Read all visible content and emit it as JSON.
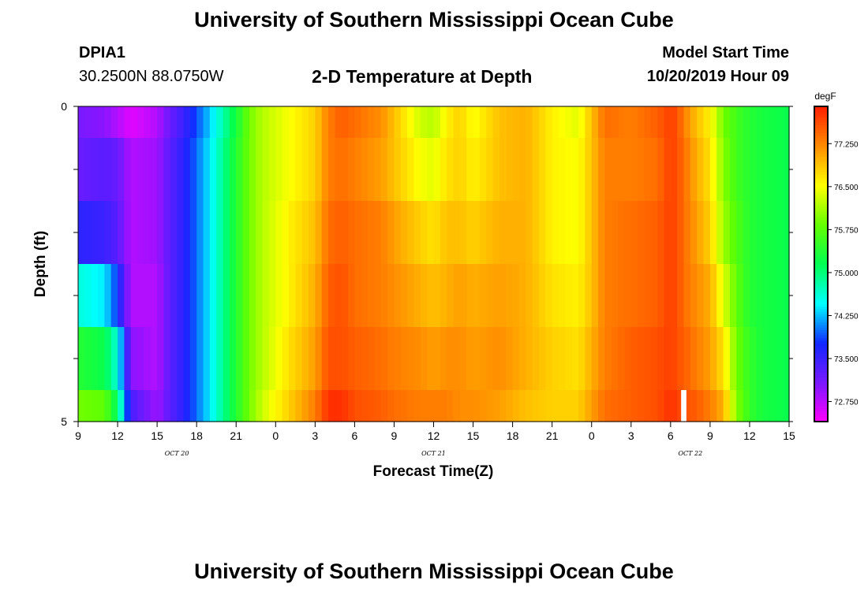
{
  "page": {
    "title_top": "University of Southern Mississippi Ocean Cube",
    "title_bottom": "University of Southern Mississippi Ocean Cube",
    "station_id": "DPIA1",
    "station_coords": "30.2500N 88.0750W",
    "plot_title": "2-D Temperature at Depth",
    "model_label": "Model Start Time",
    "model_time": "10/20/2019 Hour 09"
  },
  "colors": {
    "scale": [
      "#ff00ff",
      "#7a18ff",
      "#1028ff",
      "#00ffff",
      "#00ff52",
      "#64ff00",
      "#ffff00",
      "#ff8c00",
      "#ff1f00"
    ],
    "missing": "#ffffff"
  },
  "chart_data": {
    "type": "heatmap",
    "title": "2-D Temperature at Depth",
    "xlabel": "Forecast Time(Z)",
    "ylabel": "Depth (ft)",
    "x_ticks": [
      "9",
      "12",
      "15",
      "18",
      "21",
      "0",
      "3",
      "6",
      "9",
      "12",
      "15",
      "18",
      "21",
      "0",
      "3",
      "6",
      "9",
      "12",
      "15"
    ],
    "date_labels": [
      {
        "label": "OCT 20",
        "x": 16.5
      },
      {
        "label": "OCT 21",
        "x": 36
      },
      {
        "label": "OCT 22",
        "x": 55.5
      }
    ],
    "xlim": [
      9,
      63
    ],
    "y_ticks": [
      "0",
      "5"
    ],
    "ylim": [
      0,
      5
    ],
    "colorbar": {
      "units": "degF",
      "tick_labels": [
        "72.750",
        "73.500",
        "74.250",
        "75.000",
        "75.750",
        "76.500",
        "77.250"
      ],
      "range": [
        72.4,
        77.9
      ]
    },
    "depth_bands": [
      0.5,
      1.5,
      2.5,
      3.5,
      4.5,
      5.0
    ],
    "time_knots": [
      9,
      11,
      12,
      13,
      15,
      16,
      17,
      19,
      21,
      22,
      23,
      25,
      27,
      28,
      29,
      30,
      32,
      33,
      35,
      36,
      37,
      38,
      39,
      41,
      43,
      45,
      47,
      48,
      49,
      51,
      53,
      54,
      54.5,
      55,
      56,
      57,
      58,
      59,
      60,
      61,
      63
    ],
    "rows": [
      [
        73.1,
        73.0,
        72.8,
        72.55,
        72.8,
        73.2,
        73.5,
        74.3,
        75.3,
        75.9,
        76.2,
        76.5,
        76.8,
        77.3,
        77.5,
        77.4,
        77.2,
        76.9,
        76.3,
        76.2,
        76.6,
        76.8,
        76.5,
        76.9,
        77.0,
        76.6,
        76.4,
        76.9,
        77.4,
        77.3,
        77.5,
        77.7,
        77.6,
        77.3,
        76.9,
        76.6,
        75.9,
        75.6,
        75.4,
        75.3,
        75.2
      ],
      [
        73.2,
        73.3,
        73.2,
        72.8,
        72.9,
        73.3,
        73.6,
        74.4,
        75.4,
        75.9,
        76.2,
        76.5,
        76.8,
        77.3,
        77.4,
        77.3,
        77.1,
        76.9,
        76.5,
        76.4,
        76.7,
        76.8,
        76.6,
        76.9,
        77.0,
        76.6,
        76.5,
        76.9,
        77.3,
        77.3,
        77.4,
        77.7,
        77.6,
        77.4,
        77.0,
        76.7,
        76.0,
        75.6,
        75.4,
        75.3,
        75.2
      ],
      [
        73.6,
        73.5,
        73.3,
        72.8,
        72.9,
        73.3,
        73.6,
        74.4,
        75.4,
        75.9,
        76.2,
        76.6,
        76.9,
        77.4,
        77.5,
        77.4,
        77.3,
        77.1,
        76.8,
        76.7,
        76.9,
        76.9,
        76.8,
        77.0,
        77.0,
        76.6,
        76.5,
        76.9,
        77.3,
        77.4,
        77.5,
        77.7,
        77.6,
        77.4,
        77.1,
        76.8,
        76.1,
        75.7,
        75.4,
        75.3,
        75.2
      ],
      [
        74.6,
        74.4,
        73.8,
        72.8,
        72.8,
        73.3,
        73.6,
        74.4,
        75.4,
        75.9,
        76.2,
        76.6,
        77.0,
        77.5,
        77.6,
        77.4,
        77.3,
        77.2,
        77.0,
        76.9,
        77.0,
        77.1,
        77.0,
        77.1,
        77.0,
        76.7,
        76.6,
        76.9,
        77.3,
        77.4,
        77.5,
        77.7,
        77.6,
        77.4,
        77.2,
        77.0,
        76.4,
        75.8,
        75.4,
        75.3,
        75.2
      ],
      [
        75.4,
        75.2,
        74.6,
        73.0,
        72.8,
        73.3,
        73.6,
        74.4,
        75.4,
        75.9,
        76.2,
        76.7,
        77.1,
        77.6,
        77.6,
        77.5,
        77.4,
        77.3,
        77.2,
        77.1,
        77.2,
        77.2,
        77.1,
        77.2,
        77.0,
        76.8,
        76.7,
        77.0,
        77.3,
        77.5,
        77.6,
        77.7,
        77.6,
        77.5,
        77.3,
        77.1,
        76.7,
        75.9,
        75.5,
        75.3,
        75.2
      ],
      [
        75.9,
        75.8,
        75.1,
        73.4,
        72.9,
        73.3,
        73.6,
        74.4,
        75.4,
        75.9,
        76.3,
        76.8,
        77.3,
        77.8,
        77.8,
        77.6,
        77.5,
        77.4,
        77.3,
        77.3,
        77.3,
        77.2,
        77.2,
        77.1,
        76.9,
        76.8,
        76.8,
        77.1,
        77.4,
        77.5,
        77.6,
        77.8,
        77.7,
        77.6,
        77.5,
        77.3,
        77.0,
        76.0,
        75.5,
        75.3,
        75.2
      ]
    ],
    "missing_cells": [
      {
        "x0": 54.8,
        "x1": 55.2,
        "row": 5
      }
    ],
    "grid": false,
    "legend": "right"
  }
}
